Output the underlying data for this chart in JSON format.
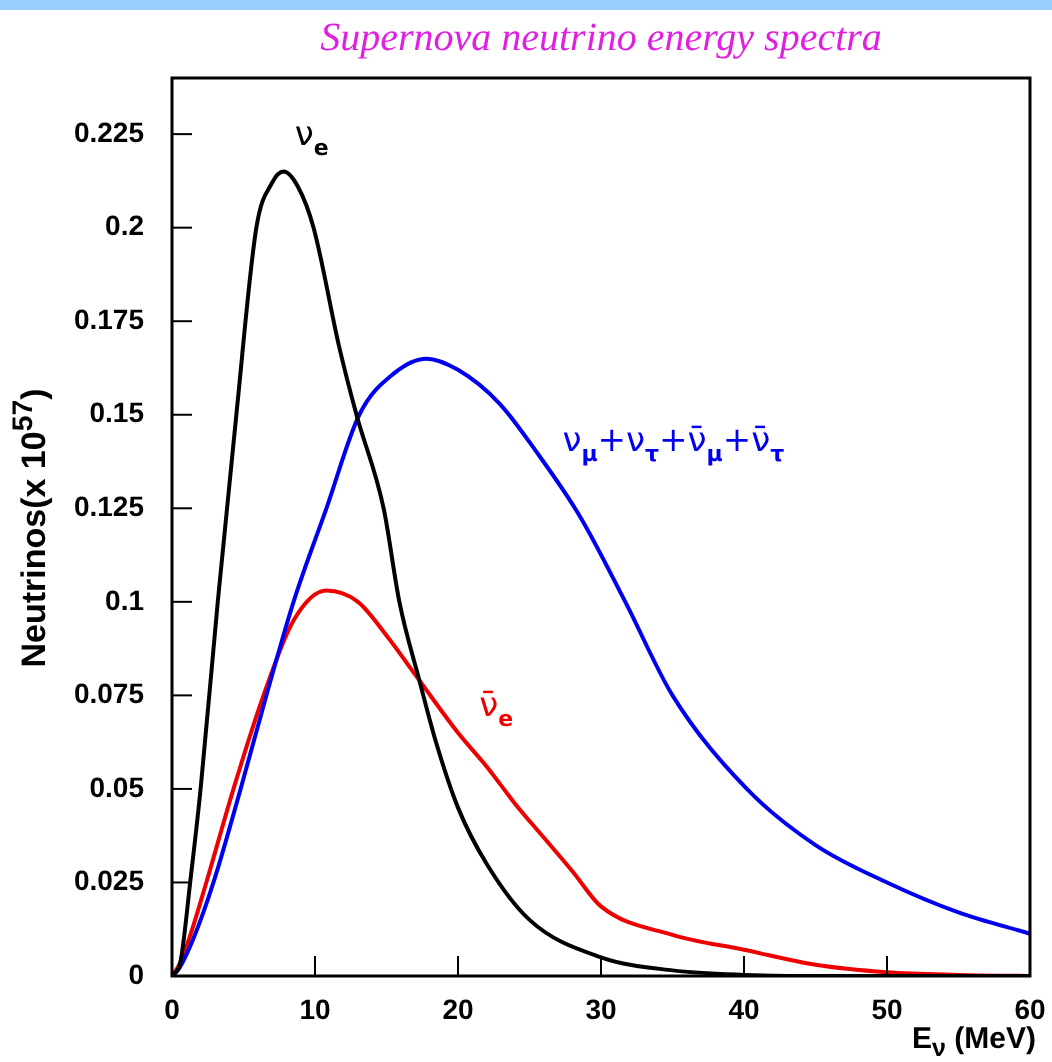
{
  "chart_data": {
    "type": "line",
    "title": "Supernova neutrino energy spectra",
    "xlabel": "E$_{ν}$ (MeV)",
    "ylabel": "Neutrinos(x 10$^{57}$)",
    "xlim": [
      0,
      60
    ],
    "xticks": [
      0,
      10,
      20,
      30,
      40,
      50,
      60
    ],
    "ylim": [
      0,
      0.24
    ],
    "yticks": [
      0,
      0.025,
      0.05,
      0.075,
      0.1,
      0.125,
      0.15,
      0.175,
      0.2,
      0.225
    ],
    "grid": false,
    "legend": false,
    "marker": "none",
    "line_style": "solid",
    "series": [
      {
        "name": "ν$_{e}$",
        "color": "#000000",
        "x": [
          0,
          0.6,
          1.3,
          2,
          3.2,
          4.5,
          5.9,
          7,
          7.8,
          8.8,
          9.9,
          11.7,
          12.9,
          14.8,
          15.9,
          17.3,
          18.5,
          20,
          22,
          25,
          30,
          35,
          40,
          45,
          50,
          55,
          60
        ],
        "values": [
          0,
          0.004,
          0.026,
          0.05,
          0.1,
          0.15,
          0.2,
          0.212,
          0.215,
          0.211,
          0.2,
          0.168,
          0.15,
          0.125,
          0.1,
          0.079,
          0.062,
          0.045,
          0.03,
          0.015,
          0.005,
          0.0015,
          0.0003,
          0,
          0,
          0,
          0
        ]
      },
      {
        "name": "ν$_{μ}$+ν$_{τ}$+ν̄$_{μ}$+ν̄$_{τ}$",
        "color": "#0000ee",
        "x": [
          0,
          0.5,
          1.5,
          2.9,
          4.8,
          6.6,
          8.5,
          10.8,
          13.1,
          15.5,
          17.8,
          20,
          22.9,
          25.5,
          28.5,
          31.7,
          35,
          40.2,
          45,
          50,
          55,
          60
        ],
        "values": [
          0,
          0.002,
          0.01,
          0.025,
          0.05,
          0.075,
          0.1,
          0.125,
          0.15,
          0.161,
          0.165,
          0.162,
          0.153,
          0.14,
          0.123,
          0.1,
          0.075,
          0.05,
          0.035,
          0.025,
          0.017,
          0.0113
        ]
      },
      {
        "name": "ν̄$_{e}$",
        "color": "#ee0000",
        "x": [
          0,
          0.5,
          1.2,
          2.4,
          4.3,
          6.4,
          8.5,
          10.8,
          13,
          15,
          17.3,
          20,
          22,
          24,
          26,
          28,
          30,
          35,
          40,
          45,
          50,
          55,
          60
        ],
        "values": [
          0,
          0.003,
          0.01,
          0.025,
          0.05,
          0.075,
          0.095,
          0.103,
          0.1,
          0.091,
          0.079,
          0.065,
          0.056,
          0.046,
          0.037,
          0.028,
          0.0186,
          0.011,
          0.007,
          0.003,
          0.001,
          0.0003,
          0
        ]
      }
    ]
  }
}
